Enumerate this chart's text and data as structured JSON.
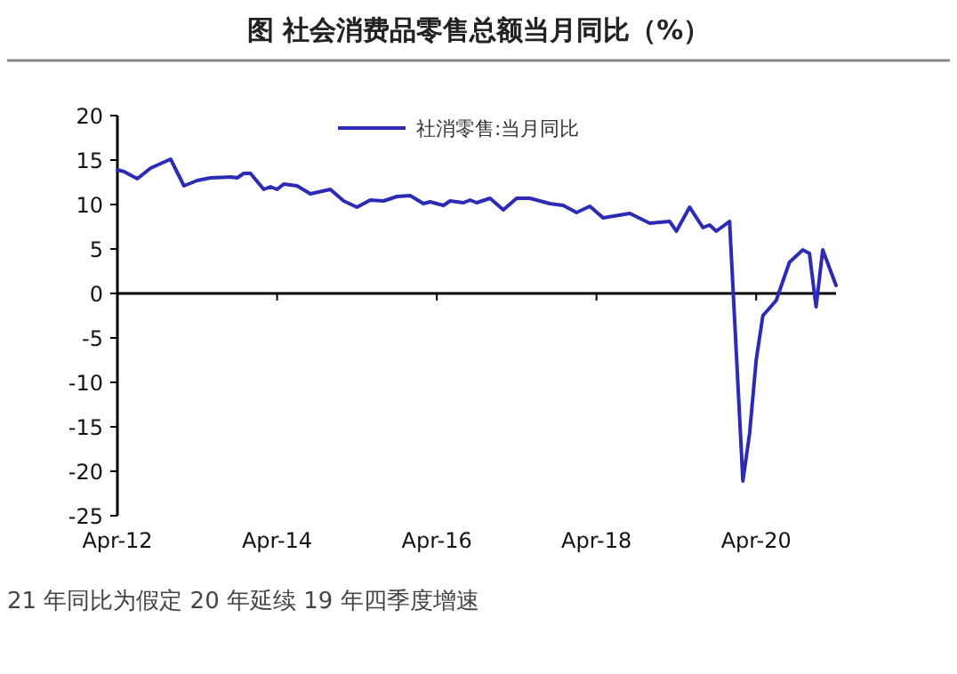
{
  "chart_data": {
    "type": "line",
    "title": "图  社会消费品零售总额当月同比（%）",
    "x": [
      "2012-04",
      "2012-05",
      "2012-07",
      "2012-09",
      "2012-12",
      "2013-02",
      "2013-04",
      "2013-06",
      "2013-09",
      "2013-10",
      "2013-11",
      "2013-12",
      "2014-02",
      "2014-03",
      "2014-04",
      "2014-05",
      "2014-07",
      "2014-09",
      "2014-12",
      "2015-02",
      "2015-04",
      "2015-06",
      "2015-08",
      "2015-10",
      "2015-12",
      "2016-02",
      "2016-03",
      "2016-05",
      "2016-06",
      "2016-08",
      "2016-09",
      "2016-10",
      "2016-12",
      "2017-02",
      "2017-04",
      "2017-06",
      "2017-09",
      "2017-11",
      "2018-01",
      "2018-03",
      "2018-05",
      "2018-09",
      "2018-12",
      "2019-03",
      "2019-04",
      "2019-06",
      "2019-08",
      "2019-09",
      "2019-10",
      "2019-12",
      "2020-02",
      "2020-03",
      "2020-04",
      "2020-05",
      "2020-07",
      "2020-09",
      "2020-11",
      "2020-12",
      "2021-01",
      "2021-02",
      "2021-04"
    ],
    "series": [
      {
        "name": "社消零售:当月同比",
        "color": "#2b2bb5",
        "values": [
          13.9,
          13.7,
          12.9,
          14.1,
          15.1,
          12.1,
          12.7,
          13.0,
          13.1,
          13.0,
          13.5,
          13.5,
          11.7,
          12.0,
          11.7,
          12.3,
          12.1,
          11.2,
          11.7,
          10.4,
          9.7,
          10.5,
          10.4,
          10.9,
          11.0,
          10.1,
          10.3,
          9.9,
          10.4,
          10.2,
          10.5,
          10.2,
          10.7,
          9.4,
          10.7,
          10.7,
          10.1,
          9.9,
          9.1,
          9.8,
          8.5,
          9.0,
          7.9,
          8.1,
          7.0,
          9.7,
          7.4,
          7.7,
          7.0,
          8.1,
          -21.1,
          -15.8,
          -7.5,
          -2.5,
          -0.8,
          3.5,
          4.9,
          4.5,
          -1.5,
          4.9,
          0.9
        ]
      }
    ],
    "xlim": [
      "2012-04",
      "2021-04"
    ],
    "xticks": [
      {
        "value": "2012-04",
        "label": "Apr-12"
      },
      {
        "value": "2014-04",
        "label": "Apr-14"
      },
      {
        "value": "2016-04",
        "label": "Apr-16"
      },
      {
        "value": "2018-04",
        "label": "Apr-18"
      },
      {
        "value": "2020-04",
        "label": "Apr-20"
      }
    ],
    "ylim": [
      -25,
      20
    ],
    "yticks": [
      -25,
      -20,
      -15,
      -10,
      -5,
      0,
      5,
      10,
      15,
      20
    ],
    "legend": "top",
    "annotations": [
      "21 年同比为假定 20 年延续 19 年四季度增速"
    ]
  }
}
